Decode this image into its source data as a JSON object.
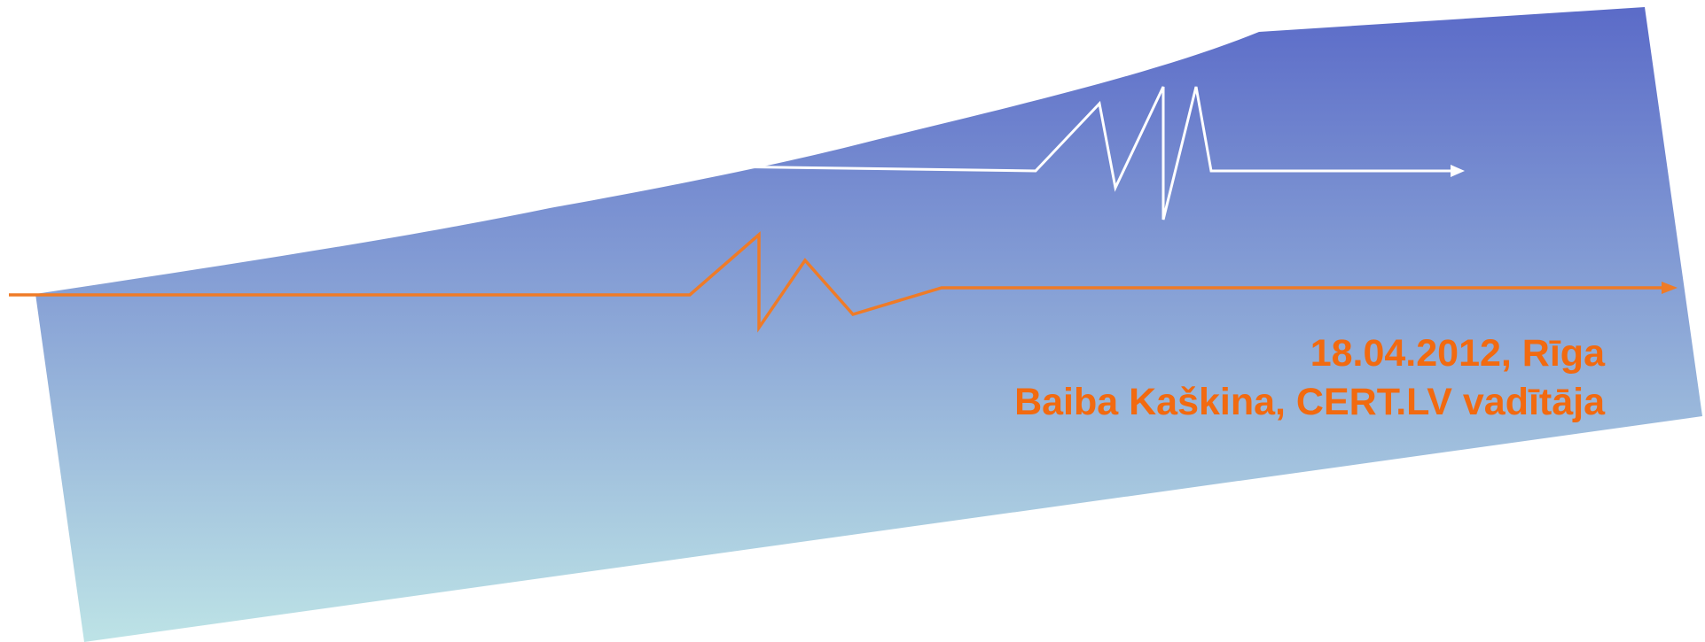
{
  "slide": {
    "date_place": "18.04.2012, Rīga",
    "author_line": "Baiba Kaškina, CERT.LV vadītāja"
  },
  "colors": {
    "background": "#ffffff",
    "gradient_top": "#5b6bc8",
    "gradient_bottom": "#bde3e6",
    "orange_line": "#ef7b27",
    "white_line": "#ffffff",
    "caption_text": "#f26a10"
  }
}
